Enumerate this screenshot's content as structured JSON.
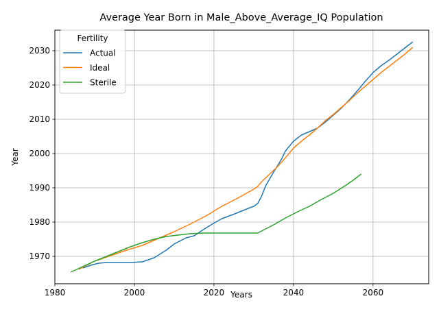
{
  "chart_data": {
    "type": "line",
    "title": "Average Year Born in Male_Above_Average_IQ Population",
    "xlabel": "Years",
    "ylabel": "Year",
    "xlim": [
      1980,
      2074
    ],
    "ylim": [
      1962,
      2036
    ],
    "xticks": [
      1980,
      2000,
      2020,
      2040,
      2060
    ],
    "yticks": [
      1970,
      1980,
      1990,
      2000,
      2010,
      2020,
      2030
    ],
    "grid": true,
    "legend": {
      "title": "Fertility",
      "placement": "top-left"
    },
    "series": [
      {
        "name": "Actual",
        "color": "#1f77b4",
        "points": [
          [
            1987,
            1966.6
          ],
          [
            1989,
            1967.4
          ],
          [
            1991,
            1968
          ],
          [
            1993,
            1968.2
          ],
          [
            1996,
            1968.2
          ],
          [
            1999,
            1968.2
          ],
          [
            2002,
            1968.4
          ],
          [
            2005,
            1969.6
          ],
          [
            2008,
            1971.8
          ],
          [
            2010,
            1973.6
          ],
          [
            2013,
            1975.4
          ],
          [
            2015,
            1976
          ],
          [
            2018,
            1978.3
          ],
          [
            2020,
            1979.7
          ],
          [
            2022,
            1981
          ],
          [
            2025,
            1982.3
          ],
          [
            2028,
            1983.7
          ],
          [
            2030,
            1984.6
          ],
          [
            2031,
            1985.4
          ],
          [
            2032,
            1987.6
          ],
          [
            2033,
            1990.6
          ],
          [
            2035,
            1994.6
          ],
          [
            2037,
            1998.4
          ],
          [
            2038,
            2000.8
          ],
          [
            2040,
            2003.6
          ],
          [
            2042,
            2005.4
          ],
          [
            2044,
            2006.4
          ],
          [
            2046,
            2007.4
          ],
          [
            2048,
            2009.2
          ],
          [
            2050,
            2011.2
          ],
          [
            2052,
            2013.2
          ],
          [
            2054,
            2015.6
          ],
          [
            2056,
            2018.2
          ],
          [
            2058,
            2021
          ],
          [
            2060,
            2023.6
          ],
          [
            2062,
            2025.6
          ],
          [
            2064,
            2027.2
          ],
          [
            2066,
            2029
          ],
          [
            2068,
            2030.8
          ],
          [
            2070,
            2032.6
          ]
        ]
      },
      {
        "name": "Ideal",
        "color": "#ff7f0e",
        "points": [
          [
            1986,
            1966.2
          ],
          [
            1990,
            1968.6
          ],
          [
            1994,
            1970.2
          ],
          [
            1998,
            1971.8
          ],
          [
            2002,
            1973.2
          ],
          [
            2006,
            1975.2
          ],
          [
            2010,
            1977.2
          ],
          [
            2014,
            1979.4
          ],
          [
            2018,
            1981.8
          ],
          [
            2022,
            1984.6
          ],
          [
            2026,
            1987
          ],
          [
            2030,
            1989.6
          ],
          [
            2031,
            1990.4
          ],
          [
            2032,
            1991.8
          ],
          [
            2034,
            1994
          ],
          [
            2036,
            1996.2
          ],
          [
            2038,
            1998.8
          ],
          [
            2040,
            2001.6
          ],
          [
            2042,
            2003.6
          ],
          [
            2044,
            2005.4
          ],
          [
            2046,
            2007.4
          ],
          [
            2048,
            2009.6
          ],
          [
            2050,
            2011.4
          ],
          [
            2052,
            2013.4
          ],
          [
            2054,
            2015.4
          ],
          [
            2056,
            2017.6
          ],
          [
            2058,
            2019.6
          ],
          [
            2060,
            2021.6
          ],
          [
            2062,
            2023.6
          ],
          [
            2064,
            2025.4
          ],
          [
            2066,
            2027.2
          ],
          [
            2068,
            2029
          ],
          [
            2070,
            2031
          ]
        ]
      },
      {
        "name": "Sterile",
        "color": "#2ca02c",
        "points": [
          [
            1984,
            1965.4
          ],
          [
            1987,
            1967
          ],
          [
            1990,
            1968.6
          ],
          [
            1993,
            1970
          ],
          [
            1996,
            1971.4
          ],
          [
            1999,
            1972.8
          ],
          [
            2002,
            1974
          ],
          [
            2005,
            1975
          ],
          [
            2008,
            1975.8
          ],
          [
            2011,
            1976.2
          ],
          [
            2014,
            1976.6
          ],
          [
            2017,
            1976.8
          ],
          [
            2020,
            1976.8
          ],
          [
            2025,
            1976.8
          ],
          [
            2031,
            1976.8
          ],
          [
            2032,
            1977.4
          ],
          [
            2035,
            1979.2
          ],
          [
            2038,
            1981.2
          ],
          [
            2041,
            1983
          ],
          [
            2044,
            1984.6
          ],
          [
            2047,
            1986.6
          ],
          [
            2050,
            1988.4
          ],
          [
            2053,
            1990.6
          ],
          [
            2055,
            1992.2
          ],
          [
            2057,
            1994
          ]
        ]
      }
    ]
  }
}
